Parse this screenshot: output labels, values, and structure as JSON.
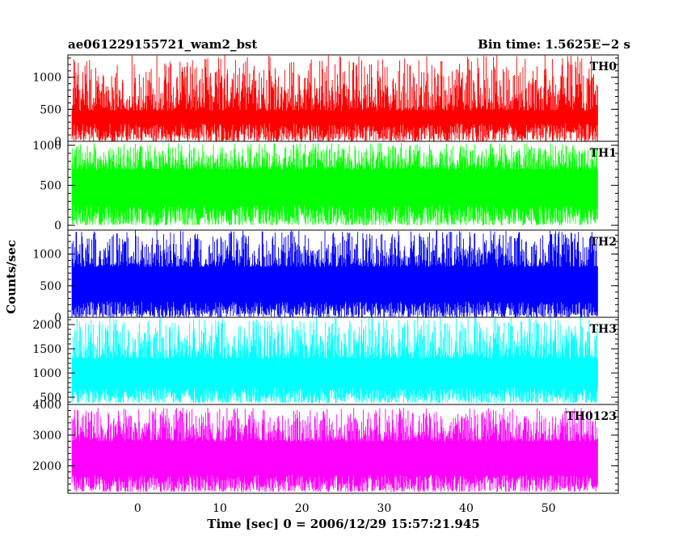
{
  "header": {
    "left_title": "ae061229155721_wam2_bst",
    "right_title": "Bin time: 1.5625E−2 s"
  },
  "chart_data": {
    "type": "line",
    "title": "ae061229155721_wam2_bst",
    "bin_time_label": "Bin time: 1.5625E−2 s",
    "xlabel": "Time [sec] 0 = 2006/12/29 15:57:21.945",
    "ylabel": "Counts/sec",
    "xlim": [
      -8.5,
      58.5
    ],
    "data_x_range": [
      -8,
      56
    ],
    "x_ticks": [
      0,
      10,
      20,
      30,
      40,
      50
    ],
    "x_minor_step": 2,
    "grid": false,
    "legend": "none",
    "panels": [
      {
        "name": "TH0",
        "color": "#ff0000",
        "ylim": [
          0,
          1350
        ],
        "y_ticks": [
          0,
          500,
          1000
        ],
        "y_minor_step": 100,
        "signal": {
          "low_min": 0,
          "low_max": 280,
          "high_min": 480,
          "high_max": 1350,
          "typical": 600
        }
      },
      {
        "name": "TH1",
        "color": "#00ff00",
        "ylim": [
          -60,
          1050
        ],
        "y_ticks": [
          0,
          500,
          1000
        ],
        "y_minor_step": 100,
        "signal": {
          "low_min": 0,
          "low_max": 250,
          "high_min": 700,
          "high_max": 1030,
          "typical": 500
        }
      },
      {
        "name": "TH2",
        "color": "#0000ff",
        "ylim": [
          0,
          1380
        ],
        "y_ticks": [
          0,
          500,
          1000
        ],
        "y_minor_step": 100,
        "signal": {
          "low_min": 0,
          "low_max": 250,
          "high_min": 800,
          "high_max": 1380,
          "typical": 650
        }
      },
      {
        "name": "TH3",
        "color": "#00ffff",
        "ylim": [
          350,
          2150
        ],
        "y_ticks": [
          500,
          1000,
          1500,
          2000
        ],
        "y_minor_step": 100,
        "signal": {
          "low_min": 380,
          "low_max": 700,
          "high_min": 1300,
          "high_max": 2150,
          "typical": 1000
        }
      },
      {
        "name": "TH0123",
        "color": "#ff00ff",
        "ylim": [
          1100,
          4000
        ],
        "y_ticks": [
          2000,
          3000,
          4000
        ],
        "y_minor_step": 200,
        "signal": {
          "low_min": 1150,
          "low_max": 1700,
          "high_min": 2800,
          "high_max": 3900,
          "typical": 2400
        }
      }
    ]
  }
}
